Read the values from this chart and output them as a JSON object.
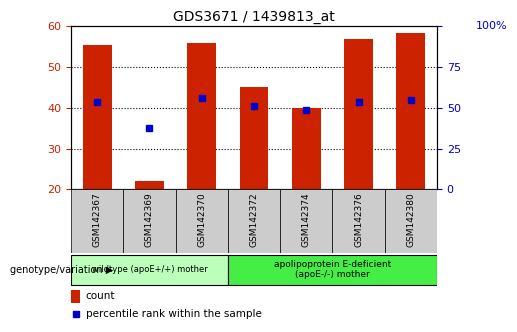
{
  "title": "GDS3671 / 1439813_at",
  "categories": [
    "GSM142367",
    "GSM142369",
    "GSM142370",
    "GSM142372",
    "GSM142374",
    "GSM142376",
    "GSM142380"
  ],
  "bar_heights": [
    55.5,
    22.0,
    56.0,
    45.0,
    40.0,
    57.0,
    58.5
  ],
  "blue_dots": [
    41.5,
    35.0,
    42.5,
    40.5,
    39.5,
    41.5,
    42.0
  ],
  "bar_color": "#cc2200",
  "dot_color": "#0000cc",
  "ylim_min": 20,
  "ylim_max": 60,
  "yticks_left": [
    20,
    30,
    40,
    50,
    60
  ],
  "yticks_right": [
    0,
    25,
    50,
    75,
    100
  ],
  "ylabel_left_color": "#cc2200",
  "ylabel_right_color": "#0000cc",
  "group1_label": "wildtype (apoE+/+) mother",
  "group2_label": "apolipoprotein E-deficient\n(apoE-/-) mother",
  "group1_indices": [
    0,
    1,
    2
  ],
  "group2_indices": [
    3,
    4,
    5,
    6
  ],
  "group1_color": "#bbffbb",
  "group2_color": "#44ee44",
  "genotype_label": "genotype/variation",
  "legend_count": "count",
  "legend_percentile": "percentile rank within the sample",
  "bar_width": 0.55,
  "bg_color": "#ffffff",
  "bar_bottom": 20,
  "label_bg": "#cccccc",
  "right_pct_label": "100%"
}
